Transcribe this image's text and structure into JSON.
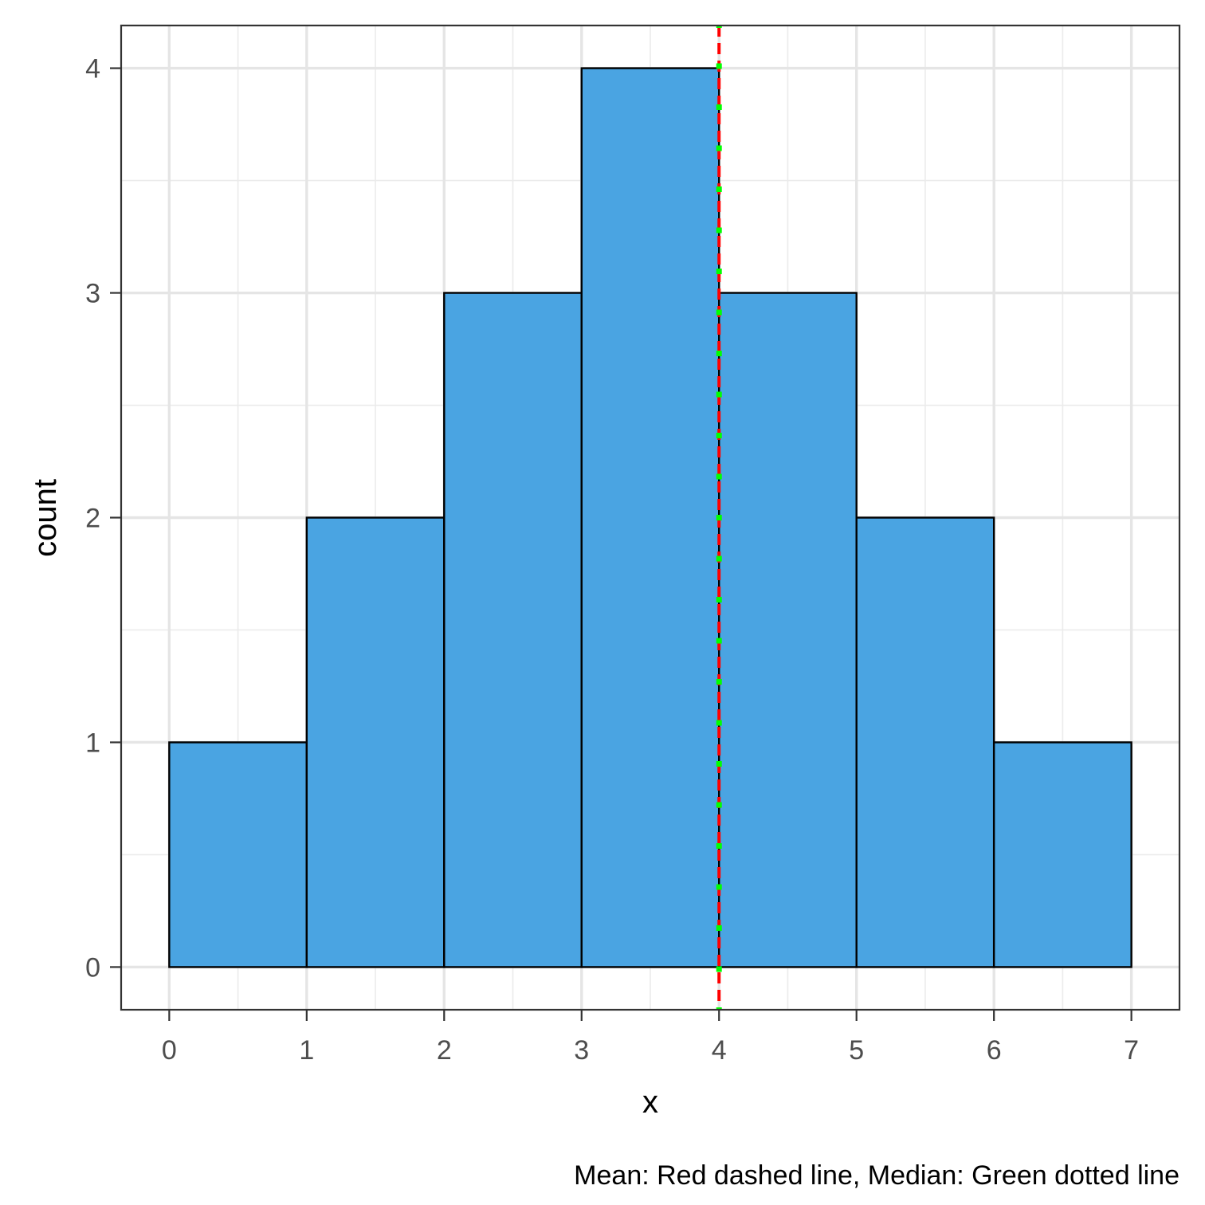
{
  "chart_data": {
    "type": "bar",
    "subtype": "histogram",
    "bins": [
      {
        "x0": 0,
        "x1": 1,
        "count": 1
      },
      {
        "x0": 1,
        "x1": 2,
        "count": 2
      },
      {
        "x0": 2,
        "x1": 3,
        "count": 3
      },
      {
        "x0": 3,
        "x1": 4,
        "count": 4
      },
      {
        "x0": 4,
        "x1": 5,
        "count": 3
      },
      {
        "x0": 5,
        "x1": 6,
        "count": 2
      },
      {
        "x0": 6,
        "x1": 7,
        "count": 1
      }
    ],
    "xlabel": "x",
    "ylabel": "count",
    "caption": "Mean: Red dashed line, Median: Green dotted line",
    "x_ticks": [
      "0",
      "1",
      "2",
      "3",
      "4",
      "5",
      "6",
      "7"
    ],
    "y_ticks": [
      "0",
      "1",
      "2",
      "3",
      "4"
    ],
    "xlim": [
      -0.35,
      7.35
    ],
    "ylim": [
      -0.19,
      4.19
    ],
    "grid": true,
    "reference_lines": [
      {
        "stat": "mean",
        "x": 4,
        "color": "#ff0000",
        "style": "dashed"
      },
      {
        "stat": "median",
        "x": 4,
        "color": "#00ff00",
        "style": "dotted"
      }
    ],
    "colors": {
      "bar_fill": "#4aa4e2",
      "bar_outline": "#000000"
    }
  }
}
